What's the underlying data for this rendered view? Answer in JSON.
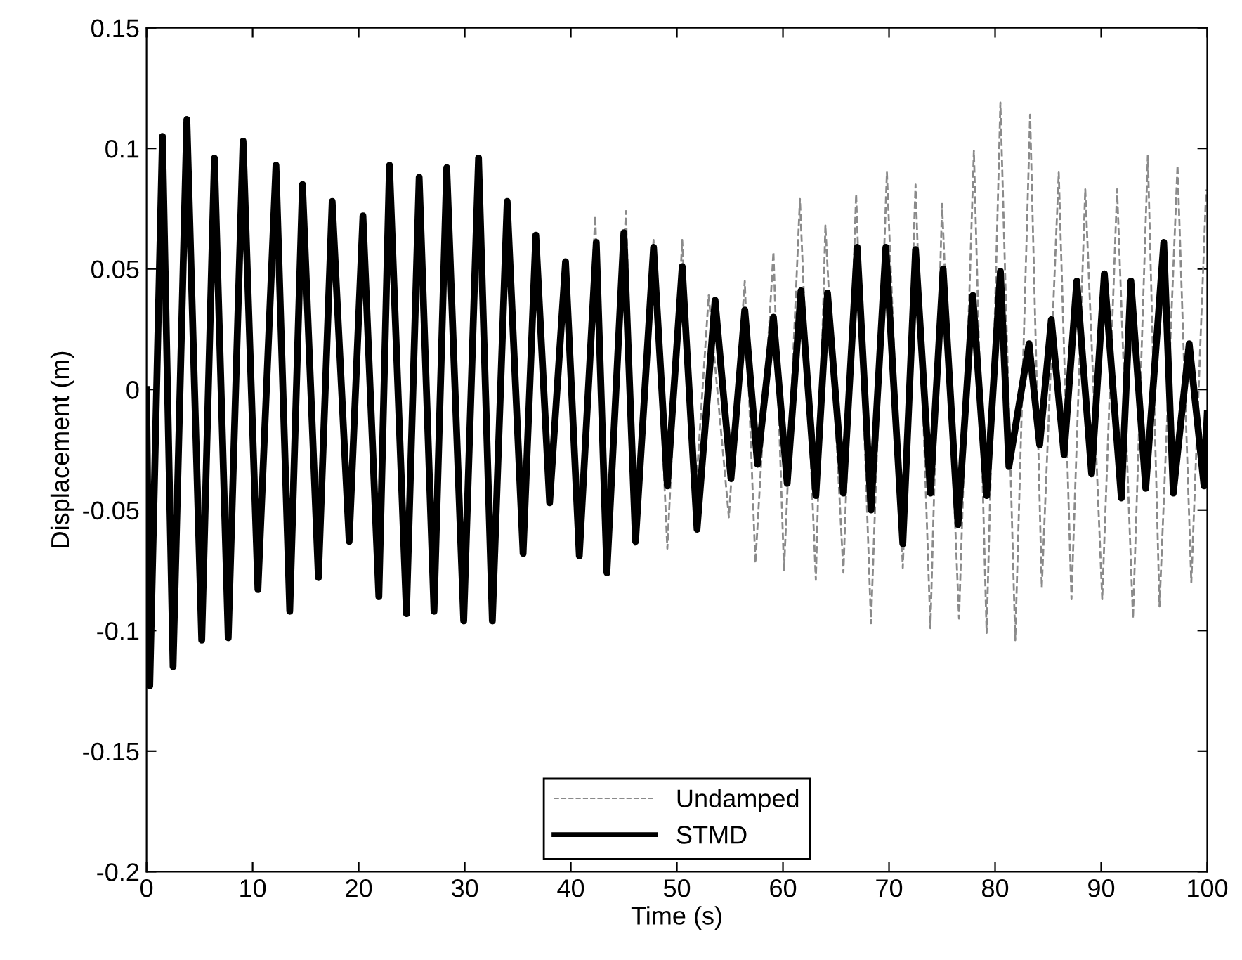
{
  "chart_data": {
    "type": "line",
    "xlabel": "Time (s)",
    "ylabel": "Displacement (m)",
    "xlim": [
      0,
      100
    ],
    "xticks": [
      0,
      10,
      20,
      30,
      40,
      50,
      60,
      70,
      80,
      90,
      100
    ],
    "ylim": [
      -0.2,
      0.15
    ],
    "yticks": [
      -0.2,
      -0.15,
      -0.1,
      -0.05,
      0,
      0.05,
      0.1,
      0.15
    ],
    "grid": false,
    "legend": "bottom",
    "marker": "none",
    "series": [
      {
        "name": "Undamped",
        "color": "#8a8a8a",
        "line_style": "dashed",
        "x": [
          40.8,
          42.3,
          43.4,
          45.2,
          46.1,
          47.8,
          49.1,
          50.5,
          51.7,
          53.0,
          54.9,
          56.4,
          57.4,
          59.1,
          60.1,
          61.6,
          63.1,
          64.0,
          65.7,
          66.9,
          68.3,
          69.8,
          71.3,
          72.5,
          73.9,
          75.0,
          76.6,
          78.0,
          79.2,
          80.5,
          81.9,
          83.3,
          84.4,
          86.0,
          87.2,
          88.5,
          90.1,
          91.5,
          93.0,
          94.4,
          95.5,
          97.2,
          98.5,
          99.9
        ],
        "values": [
          -0.069,
          0.072,
          -0.078,
          0.074,
          -0.065,
          0.062,
          -0.066,
          0.062,
          -0.048,
          0.039,
          -0.053,
          0.045,
          -0.072,
          0.057,
          -0.075,
          0.079,
          -0.079,
          0.068,
          -0.076,
          0.081,
          -0.097,
          0.09,
          -0.074,
          0.085,
          -0.099,
          0.077,
          -0.095,
          0.099,
          -0.101,
          0.119,
          -0.104,
          0.114,
          -0.082,
          0.09,
          -0.087,
          0.083,
          -0.087,
          0.083,
          -0.095,
          0.097,
          -0.09,
          0.093,
          -0.08,
          0.083
        ]
      },
      {
        "name": "STMD",
        "color": "#000000",
        "line_style": "solid",
        "x": [
          0,
          0.3,
          1.5,
          2.5,
          3.8,
          5.2,
          6.4,
          7.7,
          9.1,
          10.5,
          12.2,
          13.5,
          14.7,
          16.2,
          17.5,
          19.1,
          20.4,
          21.9,
          22.9,
          24.5,
          25.7,
          27.1,
          28.3,
          29.9,
          31.3,
          32.6,
          34.0,
          35.5,
          36.7,
          38.0,
          39.5,
          40.8,
          42.4,
          43.4,
          45.0,
          46.1,
          47.8,
          49.1,
          50.5,
          51.9,
          53.6,
          55.1,
          56.4,
          57.6,
          59.1,
          60.4,
          61.7,
          63.1,
          64.2,
          65.7,
          67.0,
          68.3,
          69.7,
          71.3,
          72.5,
          73.9,
          75.1,
          76.5,
          77.9,
          79.2,
          80.5,
          81.3,
          83.2,
          84.2,
          85.3,
          86.5,
          87.7,
          89.1,
          90.3,
          91.9,
          92.8,
          94.2,
          95.9,
          96.8,
          98.3,
          99.7,
          100
        ],
        "values": [
          0.0,
          -0.123,
          0.105,
          -0.115,
          0.112,
          -0.104,
          0.096,
          -0.103,
          0.103,
          -0.083,
          0.093,
          -0.092,
          0.085,
          -0.078,
          0.078,
          -0.063,
          0.072,
          -0.086,
          0.093,
          -0.093,
          0.088,
          -0.092,
          0.092,
          -0.096,
          0.096,
          -0.096,
          0.078,
          -0.068,
          0.064,
          -0.047,
          0.053,
          -0.069,
          0.061,
          -0.076,
          0.065,
          -0.063,
          0.059,
          -0.04,
          0.051,
          -0.058,
          0.037,
          -0.037,
          0.033,
          -0.031,
          0.03,
          -0.039,
          0.041,
          -0.044,
          0.04,
          -0.043,
          0.059,
          -0.05,
          0.059,
          -0.064,
          0.058,
          -0.043,
          0.05,
          -0.056,
          0.039,
          -0.044,
          0.049,
          -0.032,
          0.019,
          -0.023,
          0.029,
          -0.027,
          0.045,
          -0.035,
          0.048,
          -0.045,
          0.045,
          -0.041,
          0.061,
          -0.043,
          0.019,
          -0.04,
          -0.01
        ]
      }
    ]
  }
}
